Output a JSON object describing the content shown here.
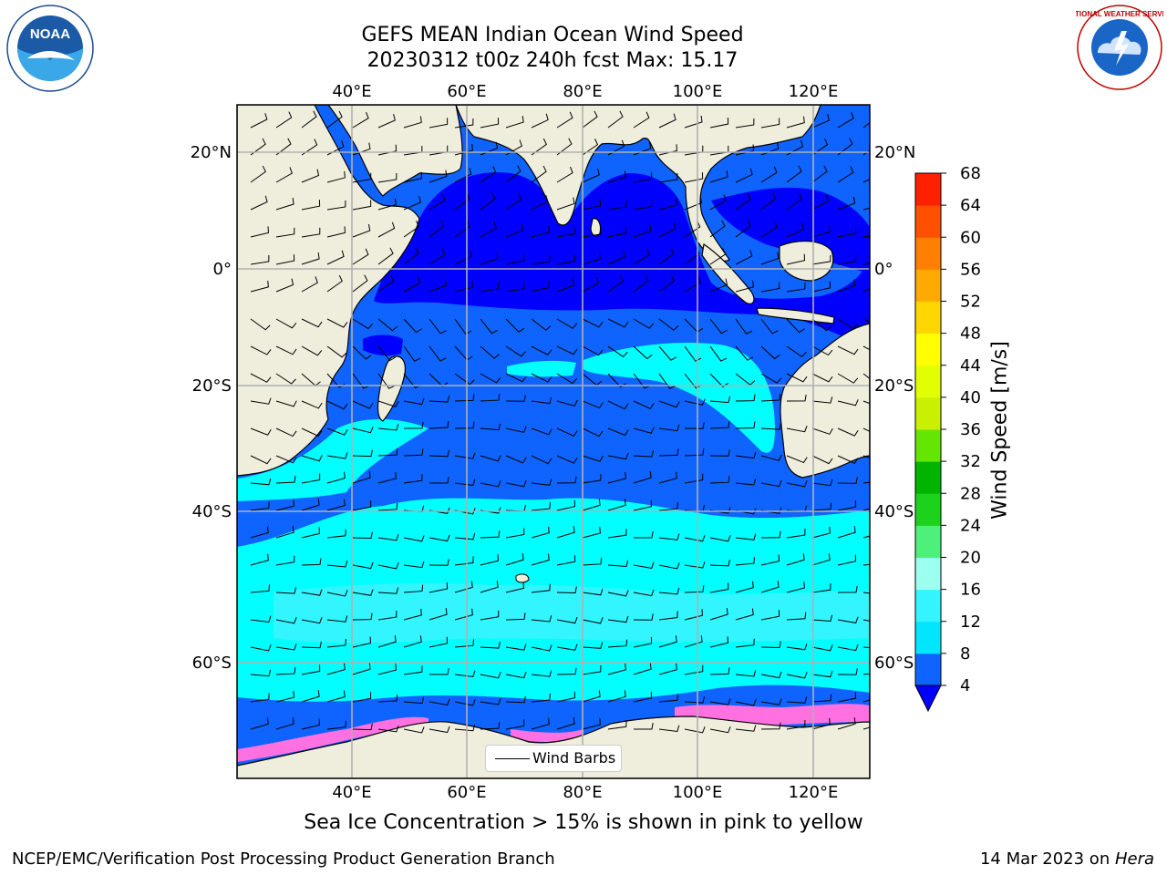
{
  "title": {
    "line1": "GEFS MEAN Indian Ocean Wind Speed",
    "line2": "20230312 t00z 240h fcst   Max: 15.17"
  },
  "map": {
    "lon_labels_top": [
      "40°E",
      "60°E",
      "80°E",
      "100°E",
      "120°E"
    ],
    "lon_labels_bottom": [
      "40°E",
      "60°E",
      "80°E",
      "100°E",
      "120°E"
    ],
    "lat_labels_left": [
      "20°N",
      "0°",
      "20°S",
      "40°S",
      "60°S"
    ],
    "lat_labels_right": [
      "20°N",
      "0°",
      "20°S",
      "40°S",
      "60°S"
    ],
    "legend": "Wind Barbs"
  },
  "colorbar": {
    "label": "Wind Speed [m/s]",
    "ticks": [
      "4",
      "8",
      "12",
      "16",
      "20",
      "24",
      "28",
      "32",
      "36",
      "40",
      "44",
      "48",
      "52",
      "56",
      "60",
      "64",
      "68"
    ],
    "colors": [
      "#0f63ff",
      "#00e6ff",
      "#32f5ff",
      "#9dfff0",
      "#4ef07c",
      "#1dd21d",
      "#00b400",
      "#64e600",
      "#c8f000",
      "#e1ff00",
      "#ffff00",
      "#ffd700",
      "#ffaa00",
      "#ff8000",
      "#ff5000",
      "#ff2000"
    ],
    "under_color": "#0000ff"
  },
  "colors": {
    "land": "#efeedd",
    "slow_wind": "#0000ff",
    "medium_wind": "#0f63ff",
    "fast_wind": "#00ffff",
    "fastest_wind": "#32f5ff",
    "sea_ice": "#ff70e0"
  },
  "caption": "Sea Ice Concentration > 15% is shown in pink to yellow",
  "footer": {
    "left": "NCEP/EMC/Verification Post Processing Product Generation Branch",
    "date": "14 Mar 2023 on ",
    "system": "Hera"
  },
  "logos": {
    "noaa": "NOAA",
    "nws": "NATIONAL WEATHER SERVICE"
  }
}
